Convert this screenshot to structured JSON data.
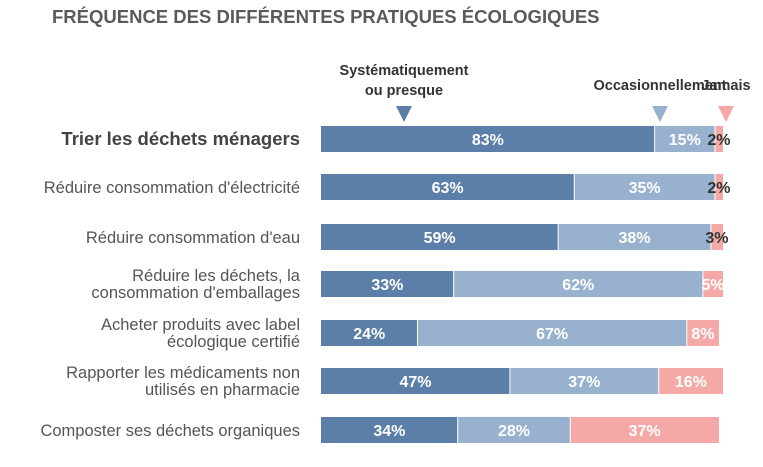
{
  "chart_data": {
    "type": "bar",
    "orientation": "horizontal",
    "stacked": true,
    "title": "FRÉQUENCE DES DIFFÉRENTES PRATIQUES ÉCOLOGIQUES",
    "xlim": [
      0,
      100
    ],
    "categories": [
      {
        "lines": [
          "Trier les déchets ménagers"
        ],
        "emphasis": true
      },
      {
        "lines": [
          "Réduire consommation d'électricité"
        ]
      },
      {
        "lines": [
          "Réduire consommation d'eau"
        ]
      },
      {
        "lines": [
          "Réduire les déchets, la",
          "consommation d'emballages"
        ]
      },
      {
        "lines": [
          "Acheter produits avec label",
          "écologique certifié"
        ]
      },
      {
        "lines": [
          "Rapporter les médicaments non",
          "utilisés en pharmacie"
        ]
      },
      {
        "lines": [
          "Composter ses déchets organiques"
        ]
      }
    ],
    "series": [
      {
        "name_lines": [
          "Systématiquement",
          "ou presque"
        ],
        "color": "#5b7fa8",
        "values": [
          83,
          63,
          59,
          33,
          24,
          47,
          34
        ],
        "labels": [
          "83%",
          "63%",
          "59%",
          "33%",
          "24%",
          "47%",
          "34%"
        ]
      },
      {
        "name_lines": [
          "Occasionnellement"
        ],
        "color": "#97b1cf",
        "values": [
          15,
          35,
          38,
          62,
          67,
          37,
          28
        ],
        "labels": [
          "15%",
          "35%",
          "38%",
          "62%",
          "67%",
          "37%",
          "28%"
        ]
      },
      {
        "name_lines": [
          "Jamais"
        ],
        "color": "#f4a9a6",
        "values": [
          2,
          2,
          3,
          5,
          8,
          16,
          37
        ],
        "labels": [
          "2%",
          "2%",
          "3%",
          "5%",
          "8%",
          "16%",
          "37%"
        ]
      }
    ],
    "legend": "top, with markers above each series"
  }
}
